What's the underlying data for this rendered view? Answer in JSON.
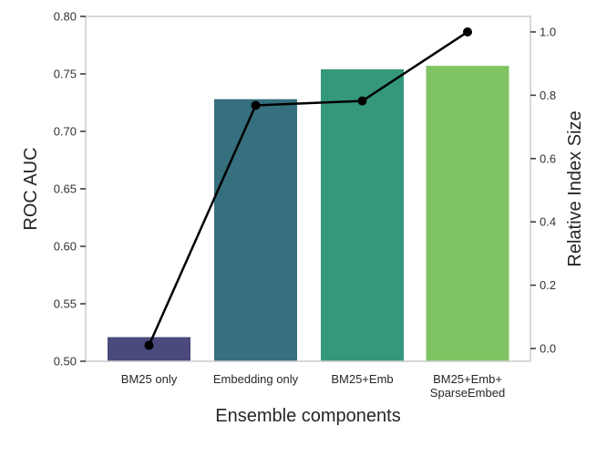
{
  "chart_data": {
    "type": "bar",
    "title": "",
    "categories": [
      "BM25 only",
      "Embedding only",
      "BM25+Emb",
      "BM25+Emb+\nSparseEmbed"
    ],
    "xlabel": "Ensemble components",
    "ylabel": "ROC AUC",
    "ylabel_right": "Relative Index Size",
    "ylim": [
      0.5,
      0.8
    ],
    "ylim_right": [
      0.0,
      1.0
    ],
    "yticks": [
      "0.50",
      "0.55",
      "0.60",
      "0.65",
      "0.70",
      "0.75",
      "0.80"
    ],
    "yticks_right": [
      "0.0",
      "0.2",
      "0.4",
      "0.6",
      "0.8",
      "1.0"
    ],
    "grid": false,
    "series": [
      {
        "name": "ROC AUC",
        "type": "bar",
        "axis": "left",
        "values": [
          0.521,
          0.728,
          0.754,
          0.757
        ],
        "colors": [
          "#4a4a7d",
          "#366f7e",
          "#35977b",
          "#80c363"
        ]
      },
      {
        "name": "Relative Index Size",
        "type": "line",
        "axis": "right",
        "values": [
          0.01,
          0.768,
          0.782,
          1.0
        ],
        "color": "#000000",
        "marker": "circle"
      }
    ]
  }
}
